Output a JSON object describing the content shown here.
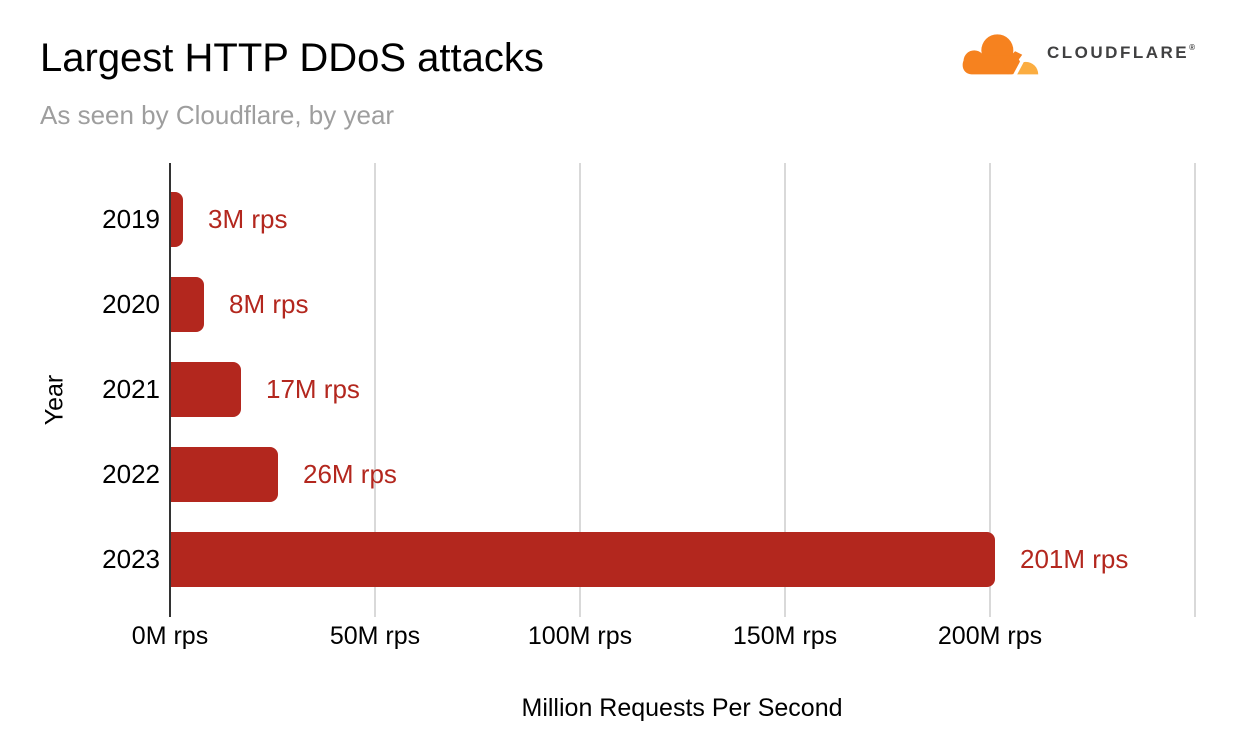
{
  "header": {
    "title": "Largest HTTP DDoS attacks",
    "subtitle": "As seen by Cloudflare, by year",
    "logo": {
      "wordmark": "CLOUDFLARE",
      "trademark": "®"
    }
  },
  "chart_data": {
    "type": "bar",
    "orientation": "horizontal",
    "title": "Largest HTTP DDoS attacks",
    "subtitle": "As seen by Cloudflare, by year",
    "categories": [
      "2019",
      "2020",
      "2021",
      "2022",
      "2023"
    ],
    "values": [
      3,
      8,
      17,
      26,
      201
    ],
    "value_labels": [
      "3M rps",
      "8M rps",
      "17M rps",
      "26M rps",
      "201M rps"
    ],
    "xlabel": "Million Requests Per Second",
    "ylabel": "Year",
    "xlim": [
      0,
      250
    ],
    "x_ticks": [
      {
        "value": 0,
        "label": "0M rps"
      },
      {
        "value": 50,
        "label": "50M rps"
      },
      {
        "value": 100,
        "label": "100M rps"
      },
      {
        "value": 150,
        "label": "150M rps"
      },
      {
        "value": 200,
        "label": "200M rps"
      },
      {
        "value": 250,
        "label": ""
      }
    ],
    "grid": true,
    "legend": false,
    "colors": {
      "bar": "#B3271E",
      "value_label": "#B3271E",
      "grid_line": "#D9D9D9",
      "zero_axis": "#333333",
      "tick_label": "#000000",
      "title": "#000000",
      "subtitle": "#9E9E9E",
      "logo_orange": "#F6821F",
      "logo_light_orange": "#FBAD41",
      "logo_text": "#404041"
    }
  }
}
